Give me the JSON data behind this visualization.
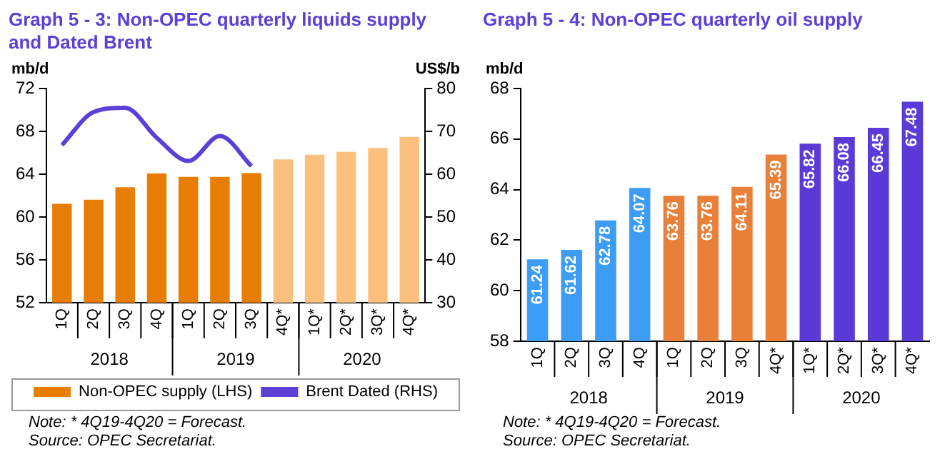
{
  "chart_data": [
    {
      "type": "bar",
      "title": "Graph 5 - 3: Non-OPEC quarterly liquids supply and Dated Brent",
      "ylabel": "mb/d",
      "y2label": "US$/b",
      "categories": [
        "1Q",
        "2Q",
        "3Q",
        "4Q",
        "1Q",
        "2Q",
        "3Q",
        "4Q*",
        "1Q*",
        "2Q*",
        "3Q*",
        "4Q*"
      ],
      "series": [
        {
          "name": "Non-OPEC supply (LHS)",
          "type": "bar",
          "color": "#e87d05",
          "colors": [
            "#e87d05",
            "#e87d05",
            "#e87d05",
            "#e87d05",
            "#e87d05",
            "#e87d05",
            "#e87d05",
            "#fbc07e",
            "#fbc07e",
            "#fbc07e",
            "#fbc07e",
            "#fbc07e"
          ],
          "values": [
            61.24,
            61.62,
            62.78,
            64.07,
            63.76,
            63.76,
            64.11,
            65.39,
            65.82,
            66.08,
            66.45,
            67.48
          ]
        },
        {
          "name": "Brent Dated (RHS)",
          "type": "line",
          "axis": "y2",
          "color": "#5b3fd6",
          "values": [
            66.8,
            74.5,
            75.5,
            68.5,
            63.1,
            68.9,
            61.9,
            null,
            null,
            null,
            null,
            null
          ]
        }
      ],
      "ylim": [
        52,
        72
      ],
      "yticks": [
        52,
        56,
        60,
        64,
        68,
        72
      ],
      "y2lim": [
        30,
        80
      ],
      "y2ticks": [
        30,
        40,
        50,
        60,
        70,
        80
      ],
      "legend": "bottom",
      "marker": "none",
      "annotations": [
        "2018",
        "2019",
        "2020",
        "Note: * 4Q19-4Q20  = Forecast.",
        "Source: OPEC Secretariat."
      ]
    },
    {
      "type": "bar",
      "title": "Graph 5 - 4: Non-OPEC quarterly oil supply",
      "ylabel": "mb/d",
      "categories": [
        "1Q",
        "2Q",
        "3Q",
        "4Q",
        "1Q",
        "2Q",
        "3Q",
        "4Q*",
        "1Q*",
        "2Q*",
        "3Q*",
        "4Q*"
      ],
      "series": [
        {
          "type": "bar",
          "colors": [
            "#3d9cf5",
            "#3d9cf5",
            "#3d9cf5",
            "#3d9cf5",
            "#e8803a",
            "#e8803a",
            "#e8803a",
            "#e8803a",
            "#5b3bd8",
            "#5b3bd8",
            "#5b3bd8",
            "#5b3bd8"
          ],
          "values": [
            61.24,
            61.62,
            62.78,
            64.07,
            63.76,
            63.76,
            64.11,
            65.39,
            65.82,
            66.08,
            66.45,
            67.48
          ]
        }
      ],
      "ylim": [
        58,
        68
      ],
      "yticks": [
        58,
        60,
        62,
        64,
        66,
        68
      ],
      "data_labels": true,
      "annotations": [
        "2018",
        "2019",
        "2020",
        "Note: * 4Q19-4Q20 = Forecast.",
        "Source: OPEC Secretariat."
      ]
    }
  ]
}
